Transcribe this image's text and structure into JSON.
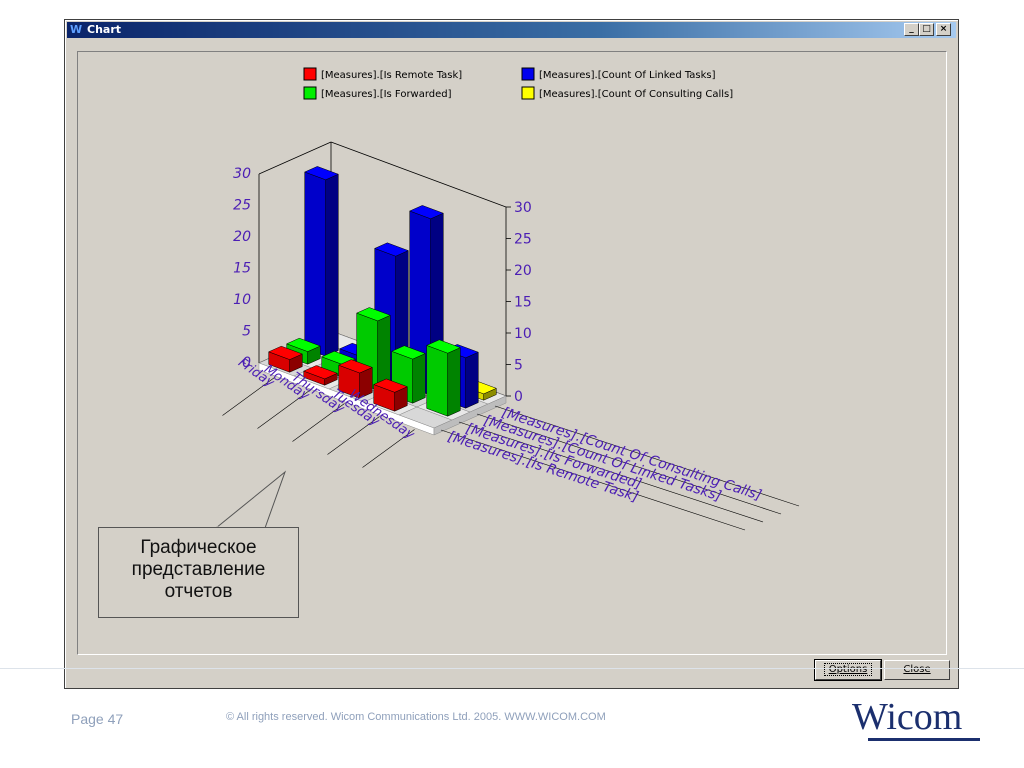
{
  "window": {
    "title": "Chart",
    "icon": "app-logo-icon",
    "controls": {
      "minimize": "_",
      "maximize": "□",
      "close": "×"
    }
  },
  "buttons": {
    "options": "Options",
    "close": "Close"
  },
  "callout": {
    "line1": "Графическое",
    "line2": "представление",
    "line3": "отчетов"
  },
  "footer": {
    "page": "Page 47",
    "copyright": "© All rights reserved. Wicom Communications Ltd. 2005. WWW.WICOM.COM",
    "brand": "Wicom"
  },
  "chart_data": {
    "type": "bar",
    "subtype": "3d-bar",
    "categories": [
      "Friday",
      "Monday",
      "Thursday",
      "Tuesday",
      "Wednesday"
    ],
    "series": [
      {
        "name": "[Measures].[Is Remote Task]",
        "color": "#ff0000",
        "values": [
          2,
          1,
          4,
          3,
          0
        ]
      },
      {
        "name": "[Measures].[Is Forwarded]",
        "color": "#00ee00",
        "values": [
          2,
          2,
          11,
          7,
          10
        ]
      },
      {
        "name": "[Measures].[Count Of Linked Tasks]",
        "color": "#0000ee",
        "values": [
          28,
          2,
          20,
          28,
          8
        ]
      },
      {
        "name": "[Measures].[Count Of Consulting Calls]",
        "color": "#ffff00",
        "values": [
          0,
          1,
          0,
          0,
          1
        ]
      }
    ],
    "depth_labels": [
      "[Measures].[Count Of Consulting Calls]",
      "[Measures].[Count Of Linked Tasks]",
      "[Measures].[Is Forwarded]",
      "[Measures].[Is Remote Task]"
    ],
    "yticks": [
      0,
      5,
      10,
      15,
      20,
      25,
      30
    ],
    "ylim": [
      0,
      30
    ],
    "legend_position": "top",
    "label_color": "#4b1eb4"
  }
}
